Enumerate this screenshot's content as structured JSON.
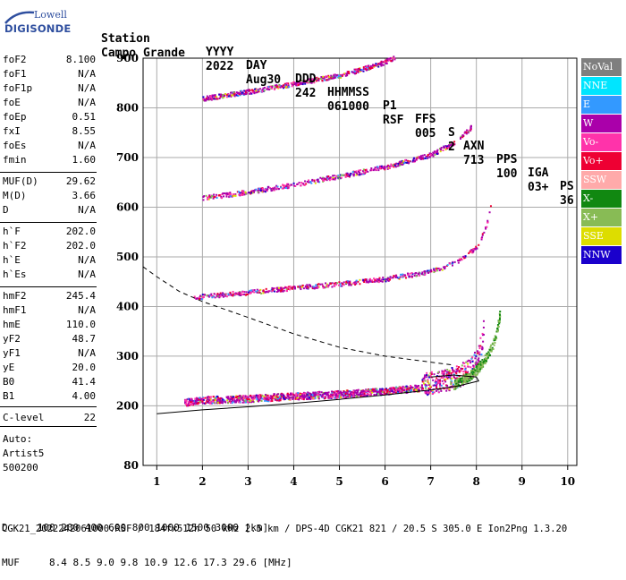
{
  "logo": {
    "line1": "Lowell",
    "line2": "DIGISONDE"
  },
  "header": {
    "labels": [
      "Station",
      "YYYY",
      "DAY",
      "DDD",
      "HHMMSS",
      "P1",
      "FFS",
      "S",
      "AXN",
      "PPS",
      "IGA",
      "PS"
    ],
    "values": [
      "Campo Grande",
      "2022",
      "Aug30",
      "242",
      "061000",
      "RSF",
      "005",
      "2",
      "713",
      "100",
      "03+",
      "36"
    ]
  },
  "params": [
    {
      "label": "foF2",
      "value": "8.100"
    },
    {
      "label": "foF1",
      "value": "N/A"
    },
    {
      "label": "foF1p",
      "value": "N/A"
    },
    {
      "label": "foE",
      "value": "N/A"
    },
    {
      "label": "foEp",
      "value": "0.51"
    },
    {
      "label": "fxI",
      "value": "8.55"
    },
    {
      "label": "foEs",
      "value": "N/A"
    },
    {
      "label": "fmin",
      "value": "1.60"
    },
    {
      "label": "MUF(D)",
      "value": "29.62"
    },
    {
      "label": "M(D)",
      "value": "3.66"
    },
    {
      "label": "D",
      "value": "N/A"
    },
    {
      "label": "h`F",
      "value": "202.0"
    },
    {
      "label": "h`F2",
      "value": "202.0"
    },
    {
      "label": "h`E",
      "value": "N/A"
    },
    {
      "label": "h`Es",
      "value": "N/A"
    },
    {
      "label": "hmF2",
      "value": "245.4"
    },
    {
      "label": "hmF1",
      "value": "N/A"
    },
    {
      "label": "hmE",
      "value": "110.0"
    },
    {
      "label": "yF2",
      "value": "48.7"
    },
    {
      "label": "yF1",
      "value": "N/A"
    },
    {
      "label": "yE",
      "value": "20.0"
    },
    {
      "label": "B0",
      "value": "41.4"
    },
    {
      "label": "B1",
      "value": "4.00"
    },
    {
      "label": "C-level",
      "value": "22"
    }
  ],
  "auto": {
    "line1": "Auto:",
    "line2": "Artist5",
    "line3": "500200"
  },
  "legend": [
    {
      "label": "NoVal",
      "color": "#7f7f7f"
    },
    {
      "label": "NNE",
      "color": "#00e5ff"
    },
    {
      "label": "E",
      "color": "#3399ff"
    },
    {
      "label": "W",
      "color": "#aa00aa"
    },
    {
      "label": "Vo-",
      "color": "#ff33aa"
    },
    {
      "label": "Vo+",
      "color": "#ee0033"
    },
    {
      "label": "SSW",
      "color": "#ffaaaa"
    },
    {
      "label": "X-",
      "color": "#118811"
    },
    {
      "label": "X+",
      "color": "#88bb55"
    },
    {
      "label": "SSE",
      "color": "#dddd00"
    },
    {
      "label": "NNW",
      "color": "#1a00cc"
    }
  ],
  "bottom": {
    "d_label": "D",
    "d_values": [
      "100",
      "200",
      "400",
      "600",
      "800",
      "1000",
      "1500",
      "3000",
      "[km]"
    ],
    "muf_label": "MUF",
    "muf_values": [
      "8.4",
      "8.5",
      "9.0",
      "9.8",
      "10.9",
      "12.6",
      "17.3",
      "29.6",
      "[MHz]"
    ],
    "footer": "CGK21_2022242061000.RSF / 184fx512h 50 kHz 2.5 km / DPS-4D CGK21 821 / 20.5 S 305.0 E Ion2Png 1.3.20"
  },
  "chart_data": {
    "type": "scatter",
    "xlim": [
      0.7,
      10.2
    ],
    "ylim": [
      80,
      900
    ],
    "xticks": [
      1,
      2,
      3,
      4,
      5,
      6,
      7,
      8,
      9,
      10
    ],
    "yticks": [
      200,
      300,
      400,
      500,
      600,
      700,
      800,
      900
    ],
    "ylabel_extra": "80",
    "grid": true,
    "traces": [
      {
        "name": "O-trace 1st hop",
        "color": "#cc22aa",
        "points": [
          [
            1.6,
            205
          ],
          [
            2,
            210
          ],
          [
            3,
            213
          ],
          [
            4,
            218
          ],
          [
            5,
            222
          ],
          [
            6,
            228
          ],
          [
            6.5,
            232
          ],
          [
            7,
            238
          ],
          [
            7.5,
            248
          ],
          [
            7.8,
            262
          ],
          [
            8.0,
            285
          ],
          [
            8.1,
            320
          ],
          [
            8.15,
            350
          ]
        ]
      },
      {
        "name": "X-trace 1st hop",
        "color": "#88bb55",
        "points": [
          [
            7.5,
            240
          ],
          [
            7.8,
            255
          ],
          [
            8.0,
            270
          ],
          [
            8.2,
            295
          ],
          [
            8.35,
            320
          ],
          [
            8.45,
            350
          ],
          [
            8.5,
            380
          ]
        ]
      },
      {
        "name": "2nd hop",
        "color": "#cc22aa",
        "points": [
          [
            1.8,
            415
          ],
          [
            2,
            420
          ],
          [
            3,
            428
          ],
          [
            4,
            437
          ],
          [
            5,
            445
          ],
          [
            6,
            455
          ],
          [
            7,
            470
          ],
          [
            7.6,
            490
          ],
          [
            8.0,
            520
          ],
          [
            8.2,
            560
          ],
          [
            8.3,
            600
          ]
        ]
      },
      {
        "name": "3rd hop",
        "color": "#cc22aa",
        "points": [
          [
            2,
            618
          ],
          [
            3,
            630
          ],
          [
            4,
            645
          ],
          [
            5,
            662
          ],
          [
            6,
            680
          ],
          [
            7,
            705
          ],
          [
            7.5,
            730
          ],
          [
            7.9,
            762
          ]
        ]
      },
      {
        "name": "4th hop",
        "color": "#cc22aa",
        "points": [
          [
            2,
            818
          ],
          [
            3,
            832
          ],
          [
            4,
            848
          ],
          [
            5,
            865
          ],
          [
            5.8,
            885
          ],
          [
            6.2,
            900
          ]
        ]
      }
    ],
    "profile_line": [
      [
        1.0,
        184
      ],
      [
        2,
        192
      ],
      [
        3,
        198
      ],
      [
        4,
        205
      ],
      [
        5,
        213
      ],
      [
        6,
        222
      ],
      [
        7,
        232
      ],
      [
        7.6,
        240
      ],
      [
        8.05,
        250
      ],
      [
        8.0,
        258
      ],
      [
        7.5,
        262
      ],
      [
        7.0,
        258
      ]
    ],
    "dashed_line": [
      [
        0.7,
        480
      ],
      [
        1,
        460
      ],
      [
        1.5,
        430
      ],
      [
        2,
        410
      ],
      [
        3,
        378
      ],
      [
        4,
        345
      ],
      [
        5,
        318
      ],
      [
        6,
        300
      ],
      [
        7,
        288
      ],
      [
        7.5,
        282
      ]
    ]
  }
}
